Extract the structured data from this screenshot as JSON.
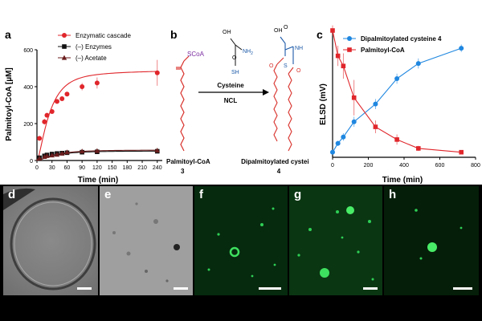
{
  "panels": {
    "a": "a",
    "b": "b",
    "c": "c",
    "d": "d",
    "e": "e",
    "f": "f",
    "g": "g",
    "h": "h"
  },
  "chart_data": [
    {
      "type": "line",
      "panel": "a",
      "xlabel": "Time (min)",
      "ylabel": "Palmitoyl-CoA [µM]",
      "xlim": [
        0,
        250
      ],
      "ylim": [
        0,
        600
      ],
      "xticks": [
        0,
        30,
        60,
        90,
        120,
        150,
        180,
        210,
        240
      ],
      "yticks": [
        0,
        200,
        400,
        600
      ],
      "legend_position": "top-left",
      "series": [
        {
          "name": "Enzymatic cascade",
          "color": "#e0262b",
          "marker": "circle",
          "x": [
            5,
            15,
            20,
            30,
            40,
            50,
            60,
            90,
            120,
            240
          ],
          "y": [
            120,
            210,
            245,
            265,
            320,
            335,
            360,
            400,
            420,
            475
          ],
          "err": [
            10,
            15,
            12,
            10,
            12,
            10,
            12,
            20,
            30,
            70
          ]
        },
        {
          "name": "(–) Enzymes",
          "color": "#111111",
          "marker": "square",
          "x": [
            5,
            15,
            20,
            30,
            40,
            50,
            60,
            90,
            120,
            240
          ],
          "y": [
            15,
            25,
            30,
            35,
            38,
            40,
            42,
            45,
            47,
            50
          ],
          "err": [
            3,
            3,
            3,
            3,
            3,
            3,
            3,
            3,
            3,
            4
          ]
        },
        {
          "name": "(–) Acetate",
          "color": "#6b1d1d",
          "marker": "triangle",
          "x": [
            5,
            15,
            20,
            30,
            40,
            50,
            60,
            90,
            120,
            240
          ],
          "y": [
            12,
            20,
            25,
            28,
            32,
            38,
            45,
            50,
            52,
            55
          ],
          "err": [
            3,
            3,
            3,
            3,
            3,
            3,
            3,
            3,
            3,
            4
          ]
        }
      ]
    },
    {
      "type": "line",
      "panel": "c",
      "xlabel": "Time (min)",
      "ylabel": "ELSD (mV)",
      "xlim": [
        0,
        800
      ],
      "ticks_x": [
        0,
        200,
        400,
        600,
        800
      ],
      "legend_position": "top-right",
      "series": [
        {
          "name": "Dipalmitoylated cysteine 4",
          "color": "#1f87e0",
          "marker": "circle",
          "x": [
            0,
            30,
            60,
            120,
            240,
            360,
            480,
            720
          ],
          "y": [
            0.04,
            0.11,
            0.16,
            0.28,
            0.42,
            0.62,
            0.74,
            0.86
          ],
          "err": [
            0.01,
            0.02,
            0.03,
            0.04,
            0.04,
            0.04,
            0.04,
            0.03
          ]
        },
        {
          "name": "Palmitoyl-CoA",
          "color": "#e0262b",
          "marker": "square",
          "x": [
            0,
            30,
            60,
            120,
            240,
            360,
            480,
            720
          ],
          "y": [
            1.0,
            0.8,
            0.72,
            0.47,
            0.24,
            0.14,
            0.07,
            0.04
          ],
          "err": [
            0.04,
            0.08,
            0.1,
            0.14,
            0.05,
            0.04,
            0.02,
            0.01
          ]
        }
      ]
    }
  ],
  "scheme": {
    "reactant_group": "SCoA",
    "reactant_label": "Palmitoyl-CoA",
    "reactant_number": "3",
    "reagent_top": "Cysteine",
    "reagent_bottom": "NCL",
    "cys_oh": "OH",
    "cys_o": "O",
    "cys_nh2": "NH",
    "cys_nh2_sub": "2",
    "cys_sh": "SH",
    "prod_oh": "OH",
    "prod_o": "O",
    "prod_nh": "NH",
    "prod_s": "S",
    "prod_o2": "O",
    "prod_o3": "O",
    "product_label": "Dipalmitoylated cysteine",
    "product_number": "4"
  },
  "colors": {
    "scoa": "#7a2ba0",
    "scheme_blue": "#1c5aa8",
    "green_fluor": "#2ecf55"
  }
}
